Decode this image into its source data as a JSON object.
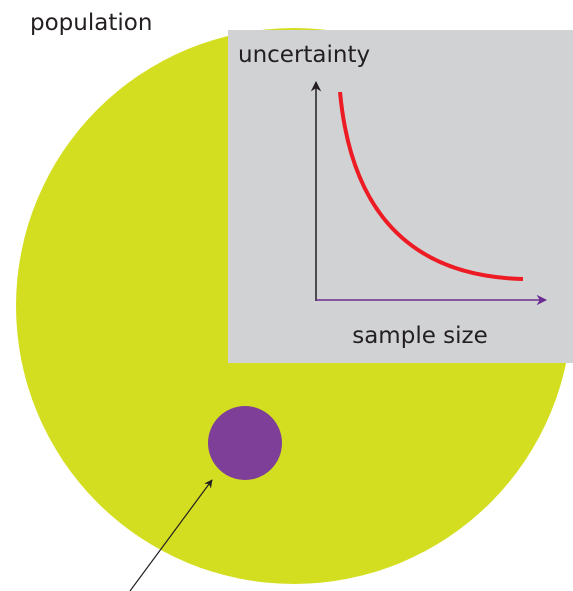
{
  "labels": {
    "population": "population",
    "y_axis": "uncertainty",
    "x_axis": "sample size"
  }
}
